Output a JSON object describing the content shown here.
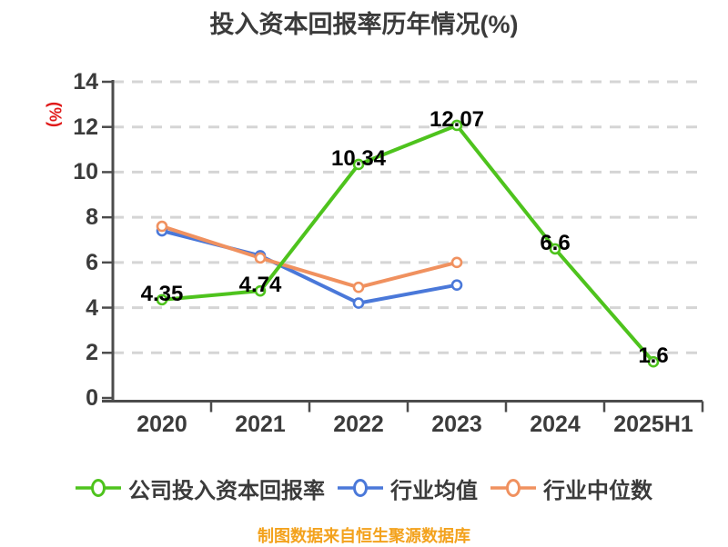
{
  "title": "投入资本回报率历年情况(%)",
  "ylabel": "(%)",
  "caption": "制图数据来自恒生聚源数据库",
  "colors": {
    "company_line": "#4ec31d",
    "industry_mean_line": "#4a78d9",
    "industry_median_line": "#f0915f",
    "grid": "#d5d5d5",
    "axis": "#4c4c4c",
    "tick_text": "#3b3b3b",
    "data_label_text": "#000000",
    "ylabel_text": "#e01a1a",
    "caption_text": "#f3a21d",
    "marker_fill": "#ffffff"
  },
  "chart_data": {
    "type": "line",
    "title": "投入资本回报率历年情况(%)",
    "xlabel": "",
    "ylabel": "(%)",
    "categories": [
      "2020",
      "2021",
      "2022",
      "2023",
      "2024",
      "2025H1"
    ],
    "series": [
      {
        "name": "公司投入资本回报率",
        "color": "#4ec31d",
        "values": [
          4.35,
          4.74,
          10.34,
          12.07,
          6.6,
          1.6
        ],
        "labels": [
          "4.35",
          "4.74",
          "10.34",
          "12.07",
          "6.6",
          "1.6"
        ],
        "show_labels": true
      },
      {
        "name": "行业均值",
        "color": "#4a78d9",
        "values": [
          7.4,
          6.3,
          4.2,
          5.0,
          null,
          null
        ],
        "show_labels": false
      },
      {
        "name": "行业中位数",
        "color": "#f0915f",
        "values": [
          7.6,
          6.2,
          4.9,
          6.0,
          null,
          null
        ],
        "show_labels": false
      }
    ],
    "yticks": [
      0,
      2,
      4,
      6,
      8,
      10,
      12,
      14
    ],
    "ylim": [
      0,
      14
    ],
    "grid": "horizontal-dashed",
    "legend_position": "bottom",
    "marker": "circle-white-fill"
  },
  "legend": {
    "items": [
      {
        "label": "公司投入资本回报率",
        "color": "#4ec31d"
      },
      {
        "label": "行业均值",
        "color": "#4a78d9"
      },
      {
        "label": "行业中位数",
        "color": "#f0915f"
      }
    ]
  }
}
